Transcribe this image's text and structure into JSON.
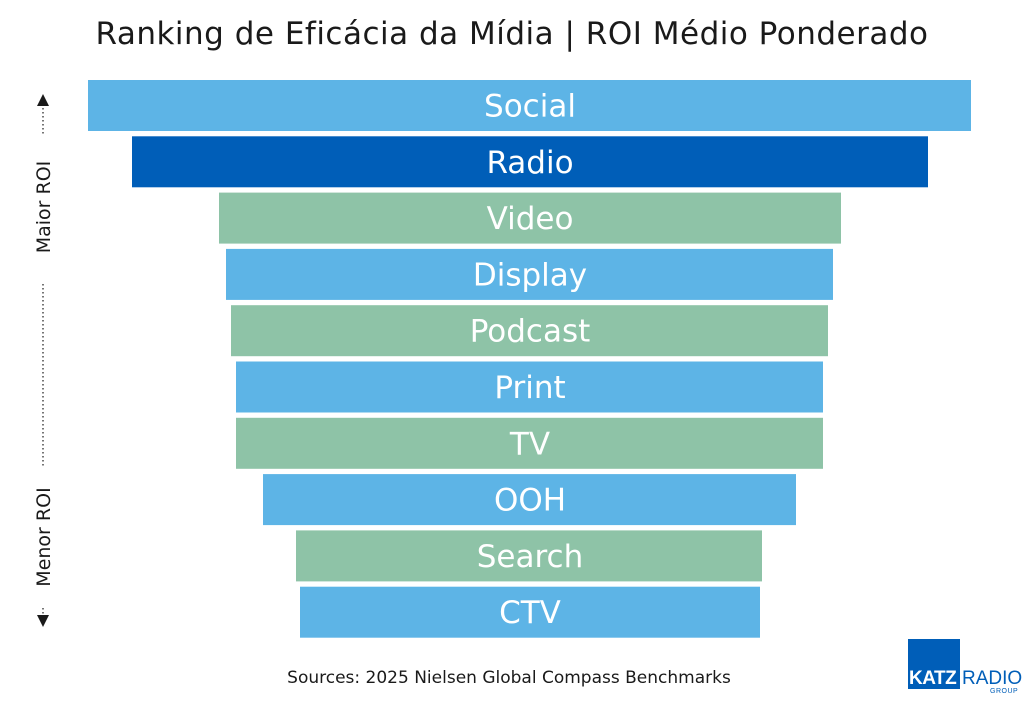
{
  "chart_data": {
    "type": "bar",
    "title": "Ranking de Eficácia da Mídia | ROI Médio Ponderado",
    "categories": [
      "Social",
      "Radio",
      "Video",
      "Display",
      "Podcast",
      "Print",
      "TV",
      "OOH",
      "Search",
      "CTV"
    ],
    "rank": [
      1,
      2,
      3,
      4,
      5,
      6,
      7,
      8,
      9,
      10
    ],
    "bar_colors": [
      "#5db4e6",
      "#005eb8",
      "#8ec3a7",
      "#5db4e6",
      "#8ec3a7",
      "#5db4e6",
      "#8ec3a7",
      "#5db4e6",
      "#8ec3a7",
      "#5db4e6"
    ],
    "axis_top_label": "Maior ROI",
    "axis_bottom_label": "Menor ROI",
    "source": "Sources: 2025 Nielsen Global Compass Benchmarks"
  },
  "logo": {
    "katz": "KATZ",
    "radio": "RADIO",
    "group": "GROUP",
    "color": "#005eb8"
  }
}
